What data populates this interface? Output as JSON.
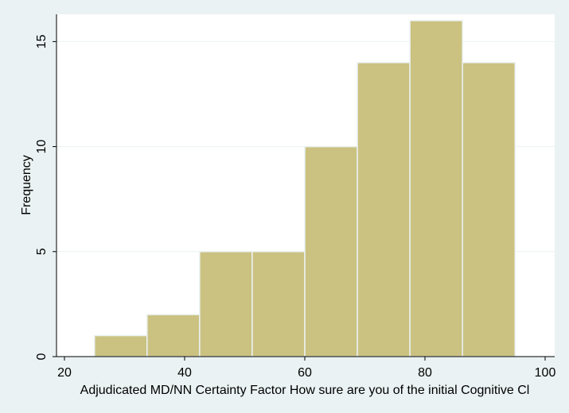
{
  "chart_data": {
    "type": "bar",
    "subtype": "histogram",
    "bins": [
      {
        "start": 25,
        "end": 33.75,
        "value": 1
      },
      {
        "start": 33.75,
        "end": 42.5,
        "value": 2
      },
      {
        "start": 42.5,
        "end": 51.25,
        "value": 5
      },
      {
        "start": 51.25,
        "end": 60,
        "value": 5
      },
      {
        "start": 60,
        "end": 68.75,
        "value": 10
      },
      {
        "start": 68.75,
        "end": 77.5,
        "value": 14
      },
      {
        "start": 77.5,
        "end": 86.25,
        "value": 16
      },
      {
        "start": 86.25,
        "end": 95,
        "value": 14
      }
    ],
    "xlabel": "Adjudicated MD/NN Certainty Factor  How sure are you of the initial Cognitive Cl",
    "ylabel": "Frequency",
    "xticks": [
      "20",
      "40",
      "60",
      "80",
      "100"
    ],
    "yticks": [
      "0",
      "5",
      "10",
      "15"
    ],
    "xlim": [
      20,
      100
    ],
    "ylim": [
      0,
      16.3
    ],
    "grid": true,
    "bar_color": "#cbc282",
    "bar_edge_color": "#eaf2f3",
    "plot_background": "#ffffff",
    "figure_background": "#eaf2f3"
  }
}
